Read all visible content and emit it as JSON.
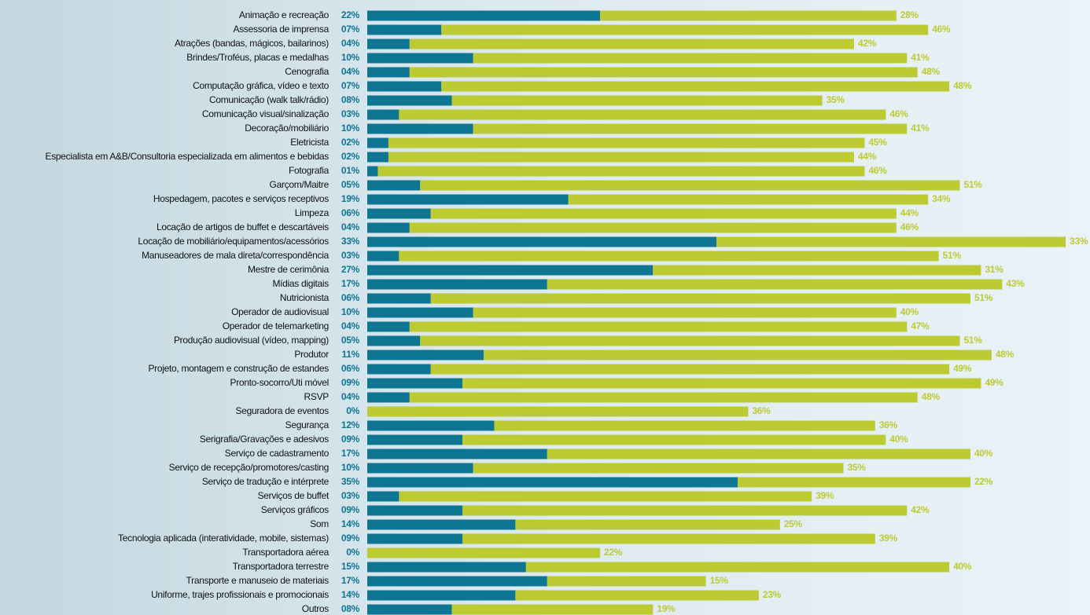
{
  "chart_data": {
    "type": "stacked-barh",
    "categories": [
      "Animação e recreação",
      "Assessoria de imprensa",
      "Atrações (bandas, mágicos, bailarinos)",
      "Brindes/Troféus, placas e medalhas",
      "Cenografia",
      "Computação gráfica, vídeo e texto",
      "Comunicação (walk talk/rádio)",
      "Comunicação visual/sinalização",
      "Decoração/mobiliário",
      "Eletricista",
      "Especialista em A&B/Consultoria especializada em alimentos e bebidas",
      "Fotografia",
      "Garçom/Maitre",
      "Hospedagem, pacotes e serviços receptivos",
      "Limpeza",
      "Locação de artigos de buffet e descartáveis",
      "Locação de mobiliário/equipamentos/acessórios",
      "Manuseadores de mala direta/correspondência",
      "Mestre de cerimônia",
      "Mídias digitais",
      "Nutricionista",
      "Operador de audiovisual",
      "Operador de telemarketing",
      "Produção audiovisual (vídeo, mapping)",
      "Produtor",
      "Projeto, montagem e construção de estandes",
      "Pronto-socorro/Uti móvel",
      "RSVP",
      "Seguradora de eventos",
      "Segurança",
      "Serigrafia/Gravações e adesivos",
      "Serviço de cadastramento",
      "Serviço de recepção/promotores/casting",
      "Serviço de tradução e intérprete",
      "Serviços de buffet",
      "Serviços gráficos",
      "Som",
      "Tecnologia aplicada (interatividade, mobile, sistemas)",
      "Transportadora aérea",
      "Transportadora terrestre",
      "Transporte e manuseio de materiais",
      "Uniforme, trajes profissionais e promocionais",
      "Outros"
    ],
    "series": [
      {
        "color": "#0e7593",
        "values": [
          22,
          7,
          4,
          10,
          4,
          7,
          8,
          3,
          10,
          2,
          2,
          1,
          5,
          19,
          6,
          4,
          33,
          3,
          27,
          17,
          6,
          10,
          4,
          5,
          11,
          6,
          9,
          4,
          0,
          12,
          9,
          17,
          10,
          35,
          3,
          9,
          14,
          9,
          0,
          15,
          17,
          14,
          8
        ],
        "value_labels": [
          "22%",
          "07%",
          "04%",
          "10%",
          "04%",
          "07%",
          "08%",
          "03%",
          "10%",
          "02%",
          "02%",
          "01%",
          "05%",
          "19%",
          "06%",
          "04%",
          "33%",
          "03%",
          "27%",
          "17%",
          "06%",
          "10%",
          "04%",
          "05%",
          "11%",
          "06%",
          "09%",
          "04%",
          "0%",
          "12%",
          "09%",
          "17%",
          "10%",
          "35%",
          "03%",
          "09%",
          "14%",
          "09%",
          "0%",
          "15%",
          "17%",
          "14%",
          "08%"
        ]
      },
      {
        "color": "#bccb32",
        "values": [
          28,
          46,
          42,
          41,
          48,
          48,
          35,
          46,
          41,
          45,
          44,
          46,
          51,
          34,
          44,
          46,
          33,
          51,
          31,
          43,
          51,
          40,
          47,
          51,
          48,
          49,
          49,
          48,
          36,
          36,
          40,
          40,
          35,
          22,
          39,
          42,
          25,
          39,
          22,
          40,
          15,
          23,
          19
        ],
        "value_labels": [
          "28%",
          "46%",
          "42%",
          "41%",
          "48%",
          "48%",
          "35%",
          "46%",
          "41%",
          "45%",
          "44%",
          "46%",
          "51%",
          "34%",
          "44%",
          "46%",
          "33%",
          "51%",
          "31%",
          "43%",
          "51%",
          "40%",
          "47%",
          "51%",
          "48%",
          "49%",
          "49%",
          "48%",
          "36%",
          "36%",
          "40%",
          "40%",
          "35%",
          "22%",
          "39%",
          "42%",
          "25%",
          "39%",
          "22%",
          "40%",
          "15%",
          "23%",
          "19%"
        ]
      }
    ],
    "xlim": [
      0,
      68
    ]
  }
}
